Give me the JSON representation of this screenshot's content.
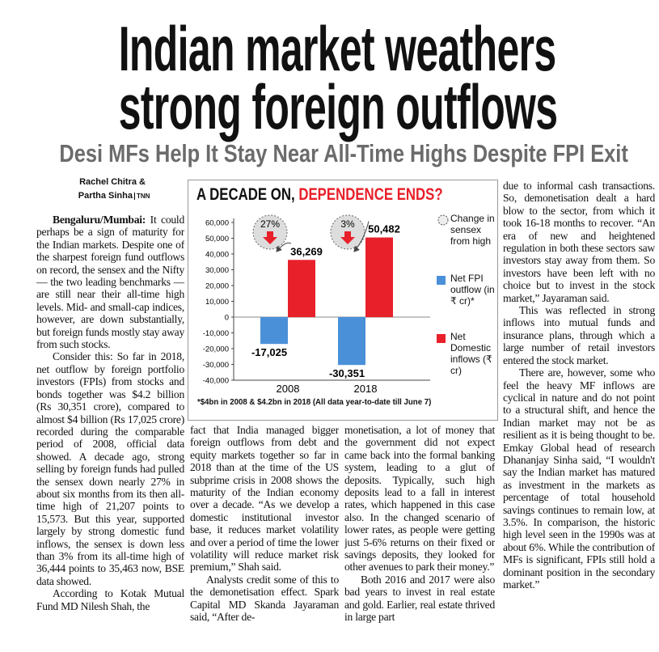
{
  "headline": [
    "Indian market weathers",
    "strong foreign outflows"
  ],
  "subheadline": "Desi MFs Help It Stay Near All-Time Highs Despite FPI Exit",
  "byline": {
    "authors": [
      "Rachel Chitra &",
      "Partha Sinha"
    ],
    "agency": "TNN"
  },
  "dateline": "Bengaluru/Mumbai:",
  "columns": [
    [
      "It could perhaps be a sign of maturity for the Indian markets. Despite one of the sharpest foreign fund outflows on record, the sensex and the Nifty — the two leading benchmarks — are still near their all-time high levels. Mid- and small-cap indices, however, are down substantially, but foreign funds mostly stay away from such stocks.",
      "Consider this: So far in 2018, net outflow by foreign portfolio investors (FPIs) from stocks and bonds together was $4.2 billion (Rs 30,351 crore), compared to almost $4 billion (Rs 17,025 crore) recorded during the comparable period of 2008, official data showed. A decade ago, strong selling by foreign funds had pulled the sensex down nearly 27% in about six months from its then all-time high of 21,207 points to 15,573. But this year, supported largely by strong domestic fund inflows, the sensex is down less than 3% from its all-time high of 36,444 points to 35,463 now, BSE data showed.",
      "According to Kotak Mutual Fund MD Nilesh Shah, the"
    ],
    [
      "fact that India managed bigger foreign outflows from debt and equity markets together so far in 2018 than at the time of the US subprime crisis in 2008 shows the maturity of the Indian economy over a decade. “As we develop a domestic institutional investor base, it reduces market volatility and over a period of time the lower volatility will reduce market risk premium,” Shah said.",
      "Analysts credit some of this to the demonetisation effect. Spark Capital MD Skanda Jayaraman said, “After de-"
    ],
    [
      "monetisation, a lot of money that the government did not expect came back into the formal banking system, leading to a glut of deposits. Typically, such high deposits lead to a fall in interest rates, which happened in this case also. In the changed scenario of lower rates, as people were getting just 5-6% returns on their fixed or savings deposits, they looked for other avenues to park their money.”",
      "Both 2016 and 2017 were also bad years to invest in real estate and gold. Earlier, real estate thrived in large part"
    ],
    [
      "due to informal cash transactions. So, demonetisation dealt a hard blow to the sector, from which it took 16-18 months to recover. “An era of new and heightened regulation in both these sectors saw investors stay away from them. So investors have been left with no choice but to invest in the stock market,” Jayaraman said.",
      "This was reflected in strong inflows into mutual funds and insurance plans, through which a large number of retail investors entered the stock market.",
      "There are, however, some who feel the heavy MF inflows are cyclical in nature and do not point to a structural shift, and hence the Indian market may not be as resilient as it is being thought to be. Emkay Global head of research Dhananjay Sinha said, “I wouldn't say the Indian market has matured as investment in the markets as percentage of total household savings continues to remain low, at 3.5%. In comparison, the historic high level seen in the 1990s was at about 6%. While the contribution of MFs is significant, FPIs still hold a dominant position in the secondary market.”"
    ]
  ],
  "chart_data": {
    "type": "bar",
    "title": [
      "A DECADE ON,",
      "DEPENDENCE ENDS?"
    ],
    "categories": [
      "2008",
      "2018"
    ],
    "series": [
      {
        "name": "Net FPI outflow (in ₹ cr)*",
        "color": "#4a90d9",
        "values": [
          -17025,
          -30351
        ],
        "value_labels": [
          "-17,025",
          "-30,351"
        ]
      },
      {
        "name": "Net Domestic inflows (₹ cr)",
        "color": "#e8202a",
        "values": [
          36269,
          50482
        ],
        "value_labels": [
          "36,269",
          "50,482"
        ]
      }
    ],
    "sensex_change": {
      "name": "Change in sensex from high",
      "values": [
        27,
        3
      ],
      "value_labels": [
        "27%",
        "3%"
      ]
    },
    "ylim": [
      -40000,
      60000
    ],
    "yticks": [
      {
        "value": -40000,
        "label": "-40,000"
      },
      {
        "value": -30000,
        "label": "-30,000"
      },
      {
        "value": -20000,
        "label": "-20,000"
      },
      {
        "value": -10000,
        "label": "-10,000"
      },
      0,
      {
        "value": 10000,
        "label": "10,000"
      },
      {
        "value": 20000,
        "label": "20,000"
      },
      {
        "value": 30000,
        "label": "30,000"
      },
      {
        "value": 40000,
        "label": "40,000"
      },
      {
        "value": 50000,
        "label": "50,000"
      },
      {
        "value": 60000,
        "label": "60,000"
      }
    ],
    "legend": "right",
    "note": "*$4bn in 2008 & $4.2bn in 2018 (All data year-to-date till June 7)"
  }
}
